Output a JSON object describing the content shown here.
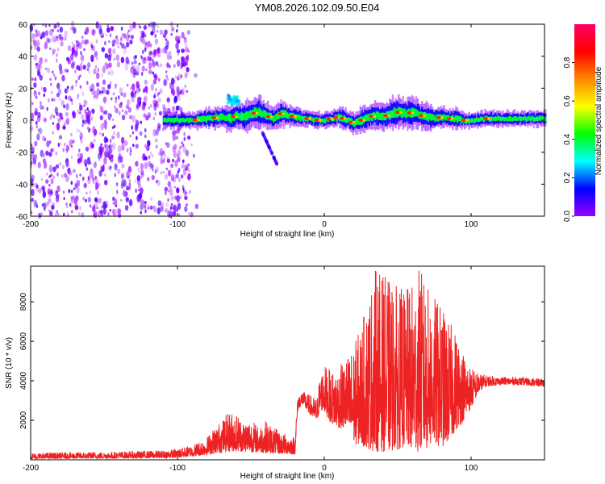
{
  "title": "YM08.2026.102.09.50.E04",
  "chart_data": [
    {
      "type": "heatmap",
      "name": "spectrogram",
      "xlabel": "Height of straight line (km)",
      "ylabel": "Frequency (Hz)",
      "xlim": [
        -200,
        150
      ],
      "ylim": [
        -60,
        60
      ],
      "xticks": [
        -200,
        -100,
        0,
        100
      ],
      "yticks": [
        60,
        40,
        20,
        0,
        -20,
        -40,
        -60
      ],
      "colorbar": {
        "label": "Normalized spectral amplitude",
        "range": [
          0,
          1
        ],
        "ticks": [
          0.0,
          0.2,
          0.4,
          0.6,
          0.8
        ],
        "tick_labels": [
          "0.0",
          "0.2",
          "0.4",
          "0.6",
          "0.8"
        ],
        "colors": [
          "#ffffff",
          "#9900ff",
          "#0000ff",
          "#00ffff",
          "#00ff00",
          "#ffff00",
          "#ff8800",
          "#ff0000",
          "#ff0066"
        ]
      },
      "noise_region_x": [
        -200,
        -92
      ],
      "noise_amplitude": [
        0.05,
        0.2
      ],
      "signal_band": {
        "x": [
          -110,
          -100,
          -90,
          -80,
          -70,
          -65,
          -60,
          -55,
          -50,
          -45,
          -40,
          -35,
          -30,
          -25,
          -20,
          -15,
          -10,
          -5,
          0,
          5,
          10,
          15,
          20,
          25,
          30,
          35,
          40,
          45,
          50,
          55,
          60,
          65,
          70,
          75,
          80,
          85,
          90,
          95,
          100,
          110,
          120,
          130,
          140,
          150
        ],
        "center_freq": [
          0,
          0,
          0,
          1,
          2,
          1,
          3,
          2,
          4,
          5,
          3,
          1,
          4,
          3,
          2,
          1,
          1,
          0,
          0,
          1,
          2,
          0,
          -2,
          0,
          2,
          3,
          2,
          4,
          5,
          4,
          5,
          3,
          2,
          1,
          2,
          1,
          1,
          0,
          0,
          1,
          1,
          1,
          1,
          1
        ],
        "halfwidth": [
          3,
          3,
          3,
          4,
          4,
          5,
          5,
          6,
          6,
          6,
          5,
          4,
          5,
          4,
          4,
          3,
          3,
          3,
          3,
          3,
          4,
          4,
          4,
          5,
          5,
          5,
          5,
          6,
          6,
          6,
          6,
          5,
          5,
          4,
          4,
          4,
          4,
          3,
          3,
          3,
          3,
          3,
          3,
          3
        ]
      },
      "features": [
        {
          "x": [
            -66,
            -58
          ],
          "freq": [
            10,
            16
          ],
          "amplitude": 0.3
        },
        {
          "x": [
            -42,
            -32
          ],
          "freq": [
            -28,
            -8
          ],
          "amplitude": 0.15
        }
      ],
      "peak_markers_x": [
        -88,
        -75,
        -62,
        -48,
        -38,
        -30,
        -22,
        -12,
        -5,
        3,
        8,
        12,
        18,
        25,
        32,
        42,
        50,
        58,
        66,
        78,
        85,
        95,
        110
      ]
    },
    {
      "type": "line",
      "name": "snr",
      "xlabel": "Height of straight line (km)",
      "ylabel": "SNR (10 * v/v)",
      "xlim": [
        -200,
        150
      ],
      "ylim": [
        0,
        9800
      ],
      "xticks": [
        -200,
        -100,
        0,
        100
      ],
      "yticks": [
        2000,
        4000,
        6000,
        8000
      ],
      "color": "#ee2222",
      "envelope": {
        "x": [
          -200,
          -150,
          -110,
          -100,
          -90,
          -80,
          -75,
          -70,
          -65,
          -60,
          -55,
          -50,
          -45,
          -40,
          -35,
          -30,
          -25,
          -20,
          -18,
          -15,
          -10,
          -5,
          -3,
          0,
          5,
          10,
          15,
          20,
          25,
          30,
          35,
          40,
          45,
          50,
          55,
          60,
          65,
          70,
          75,
          80,
          85,
          90,
          95,
          100,
          105,
          110,
          120,
          130,
          140,
          150
        ],
        "low": [
          40,
          60,
          80,
          100,
          160,
          240,
          300,
          350,
          400,
          420,
          400,
          380,
          360,
          330,
          310,
          290,
          280,
          270,
          2500,
          2800,
          2300,
          1900,
          2500,
          2400,
          1800,
          1600,
          1500,
          800,
          700,
          500,
          400,
          400,
          400,
          500,
          600,
          400,
          400,
          500,
          700,
          600,
          900,
          1500,
          2000,
          2600,
          3400,
          3700,
          3800,
          3800,
          3750,
          3700
        ],
        "high": [
          350,
          400,
          480,
          560,
          750,
          1150,
          1650,
          2000,
          2450,
          2400,
          2000,
          2100,
          1700,
          2000,
          1700,
          1400,
          1300,
          1200,
          3300,
          3500,
          3300,
          3100,
          4300,
          4800,
          4500,
          4700,
          5200,
          5800,
          6800,
          8300,
          9800,
          9400,
          9100,
          8800,
          8600,
          9000,
          9800,
          8800,
          8300,
          7800,
          7000,
          6500,
          5500,
          4700,
          4400,
          4300,
          4200,
          4200,
          4150,
          4100
        ]
      }
    }
  ]
}
